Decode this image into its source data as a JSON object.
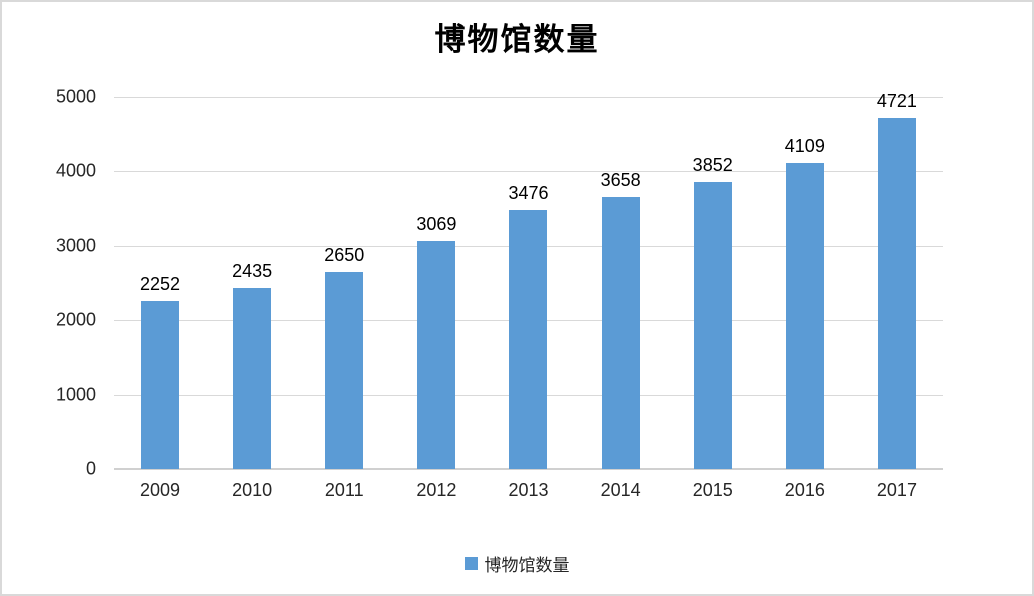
{
  "chart_data": {
    "type": "bar",
    "title": "博物馆数量",
    "categories": [
      "2009",
      "2010",
      "2011",
      "2012",
      "2013",
      "2014",
      "2015",
      "2016",
      "2017"
    ],
    "values": [
      2252,
      2435,
      2650,
      3069,
      3476,
      3658,
      3852,
      4109,
      4721
    ],
    "series_name": "博物馆数量",
    "data_labels": [
      2252,
      2435,
      2650,
      3069,
      3476,
      3658,
      3852,
      4109,
      4721
    ],
    "ylim": [
      0,
      5000
    ],
    "yticks": [
      0,
      1000,
      2000,
      3000,
      4000,
      5000
    ],
    "xlabel": "",
    "ylabel": "",
    "grid": true,
    "legend": {
      "label": "博物馆数量",
      "position": "bottom"
    },
    "colors": {
      "bar": "#5b9bd5",
      "gridline": "#d9d9d9",
      "axis_line": "#d0d0d0",
      "title_text": "#000000",
      "tick_text": "#262626",
      "value_text": "#000000",
      "background": "#ffffff",
      "frame_border": "#d9d9d9"
    }
  }
}
